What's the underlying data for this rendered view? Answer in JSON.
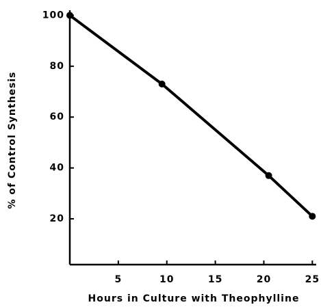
{
  "chart_data": {
    "type": "line",
    "xlabel": "Hours in Culture with Theophylline",
    "ylabel": "% of Control Synthesis",
    "x": [
      0,
      9.5,
      20.5,
      25
    ],
    "series": [
      {
        "name": null,
        "color": "#000000",
        "values": [
          100,
          73,
          37,
          21
        ]
      }
    ],
    "xlim": [
      0,
      25.4
    ],
    "xticks": [
      5,
      10,
      15,
      20,
      25
    ],
    "ylim": [
      2,
      102
    ],
    "yticks": [
      20,
      40,
      60,
      80,
      100
    ],
    "grid": false
  }
}
